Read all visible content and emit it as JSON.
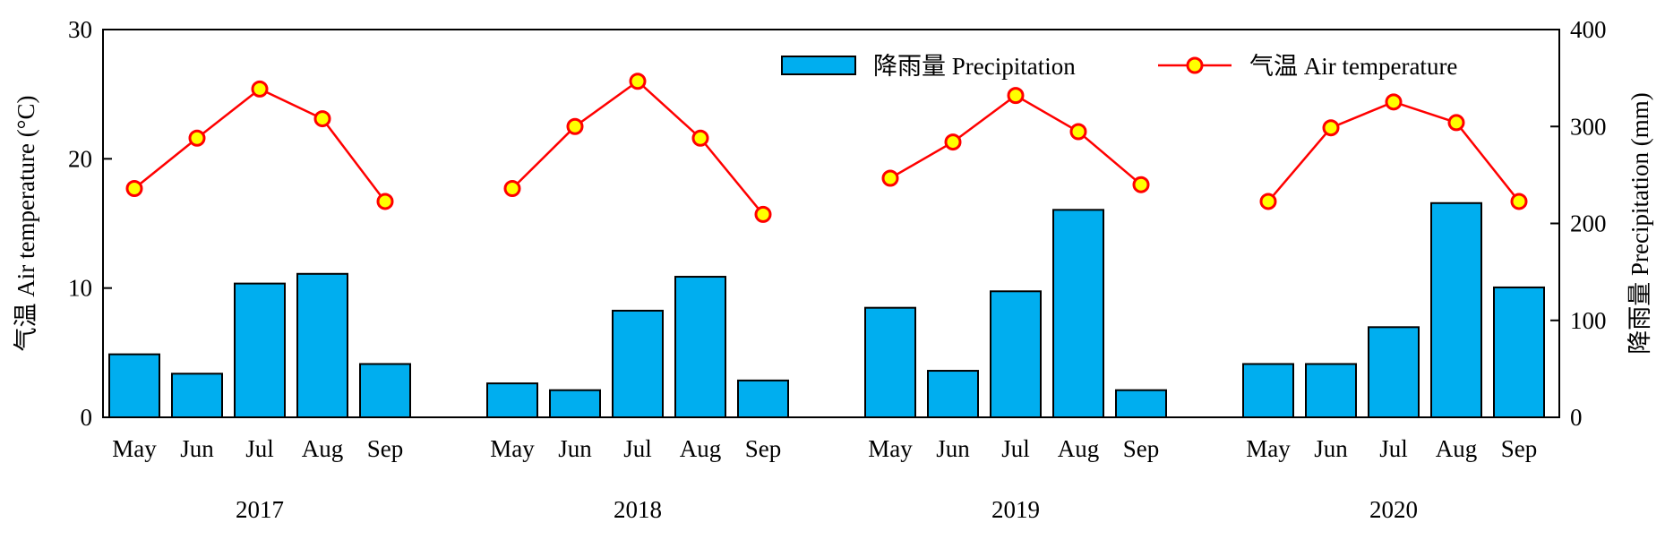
{
  "chart_data": {
    "type": "bar+line",
    "years": [
      "2017",
      "2018",
      "2019",
      "2020"
    ],
    "months": [
      "May",
      "Jun",
      "Jul",
      "Aug",
      "Sep"
    ],
    "left_axis": {
      "label": "气温 Air temperature (°C)",
      "ylim": [
        0,
        30
      ],
      "ticks": [
        0,
        10,
        20,
        30
      ]
    },
    "right_axis": {
      "label": "降雨量 Precipitation (mm)",
      "ylim": [
        0,
        400
      ],
      "ticks": [
        0,
        100,
        200,
        300,
        400
      ]
    },
    "series": [
      {
        "name": "降雨量 Precipitation",
        "kind": "bar",
        "axis": "right",
        "color": "#00aeef",
        "values": [
          [
            65,
            45,
            138,
            148,
            55
          ],
          [
            35,
            28,
            110,
            145,
            38
          ],
          [
            113,
            48,
            130,
            214,
            28
          ],
          [
            55,
            55,
            93,
            221,
            134
          ]
        ]
      },
      {
        "name": "气温 Air temperature",
        "kind": "line",
        "axis": "left",
        "line_color": "#ff0000",
        "marker_color": "#ffff00",
        "values": [
          [
            17.7,
            21.6,
            25.4,
            23.1,
            16.7
          ],
          [
            17.7,
            22.5,
            26.0,
            21.6,
            15.7
          ],
          [
            18.5,
            21.3,
            24.9,
            22.1,
            18.0
          ],
          [
            16.7,
            22.4,
            24.4,
            22.8,
            16.7
          ]
        ]
      }
    ],
    "legend": "top-right",
    "grid": false
  }
}
